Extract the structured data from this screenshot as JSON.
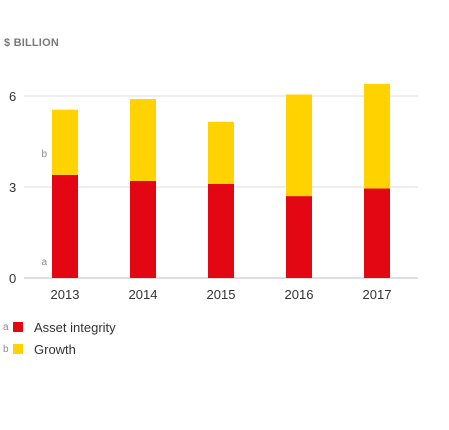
{
  "unit_label": "$ BILLION",
  "colors": {
    "asset_integrity": "#e30613",
    "growth": "#ffd200",
    "axis": "#bdbdbd",
    "grid": "#dcdcdc"
  },
  "chart_data": {
    "type": "bar",
    "stacked": true,
    "categories": [
      "2013",
      "2014",
      "2015",
      "2016",
      "2017"
    ],
    "series": [
      {
        "name": "Asset integrity",
        "marker": "a",
        "values": [
          3.4,
          3.2,
          3.1,
          2.7,
          2.95
        ]
      },
      {
        "name": "Growth",
        "marker": "b",
        "values": [
          2.15,
          2.7,
          2.05,
          3.35,
          3.45
        ]
      }
    ],
    "yticks": [
      "0",
      "3",
      "6"
    ],
    "ylim": [
      0,
      7.3
    ],
    "grid": true,
    "legend_position": "bottom-left",
    "segment_markers": [
      "a",
      "b"
    ]
  },
  "legend": [
    {
      "letter": "a",
      "label": "Asset integrity"
    },
    {
      "letter": "b",
      "label": "Growth"
    }
  ]
}
